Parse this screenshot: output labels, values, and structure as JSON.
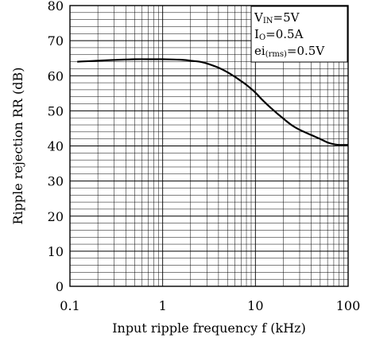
{
  "chart_data": {
    "type": "line",
    "title": "",
    "xlabel": "Input ripple frequency f (kHz)",
    "ylabel": "Ripple rejection RR (dB)",
    "xscale": "log",
    "xlim": [
      0.1,
      100
    ],
    "ylim": [
      0,
      80
    ],
    "x_ticks": [
      "0.1",
      "1",
      "10",
      "100"
    ],
    "y_ticks": [
      "0",
      "10",
      "20",
      "30",
      "40",
      "50",
      "60",
      "70",
      "80"
    ],
    "grid": true,
    "legend_position": "top-right",
    "conditions": [
      {
        "main": "V",
        "sub": "IN",
        "rest": "=5V"
      },
      {
        "main": "I",
        "sub": "O",
        "rest": "=0.5A"
      },
      {
        "main": "ei",
        "sub": "(rms)",
        "rest": "=0.5V"
      }
    ],
    "series": [
      {
        "x": [
          0.12,
          0.2,
          0.3,
          0.5,
          0.8,
          1,
          1.5,
          2,
          2.5,
          3,
          4,
          5,
          6,
          7,
          8,
          10,
          12,
          15,
          20,
          25,
          30,
          40,
          50,
          60,
          70,
          80,
          90,
          100
        ],
        "y": [
          64,
          64.3,
          64.5,
          64.7,
          64.7,
          64.7,
          64.6,
          64.3,
          64,
          63.5,
          62.3,
          61,
          59.7,
          58.5,
          57.4,
          55.2,
          53,
          50.6,
          47.8,
          45.8,
          44.6,
          43.1,
          42,
          41,
          40.5,
          40.3,
          40.3,
          40.3
        ]
      }
    ]
  }
}
